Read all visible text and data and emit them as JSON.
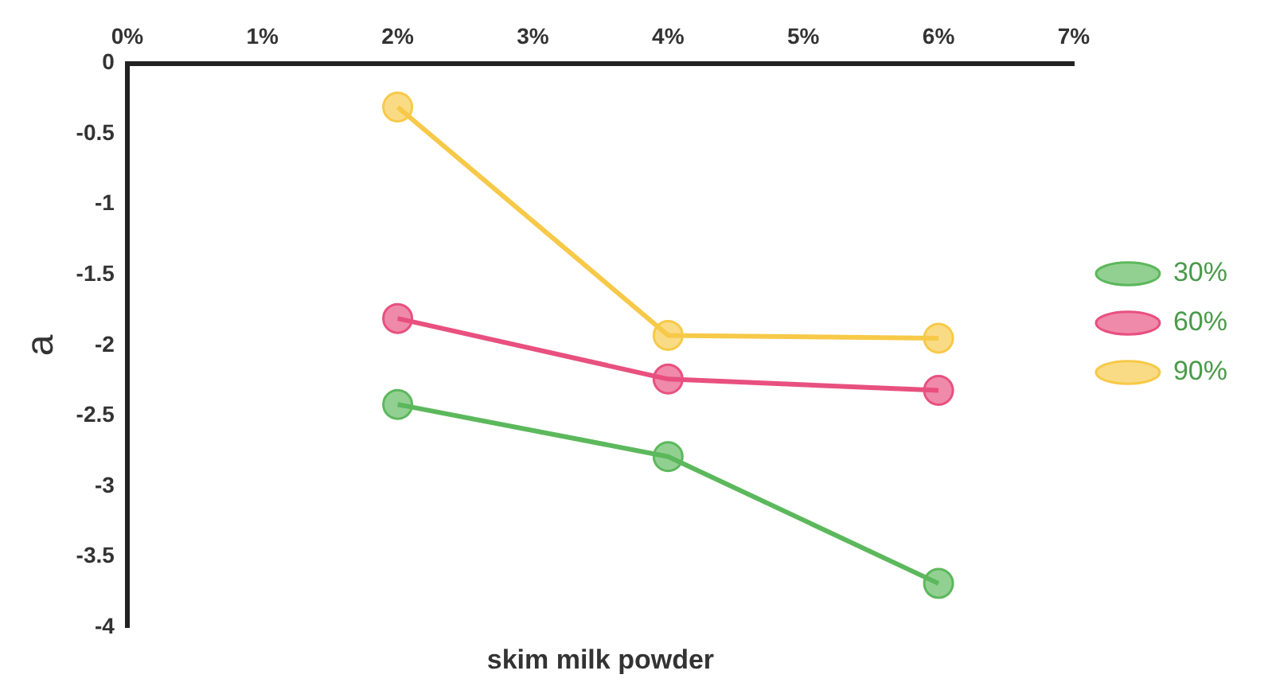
{
  "chart_data": {
    "type": "line",
    "xlabel": "skim milk powder",
    "ylabel": "a",
    "x": [
      2,
      4,
      6
    ],
    "series": [
      {
        "name": "30%",
        "color": "#5cb85c",
        "values": [
          -2.42,
          -2.79,
          -3.69
        ]
      },
      {
        "name": "60%",
        "color": "#e8507f",
        "values": [
          -1.81,
          -2.24,
          -2.32
        ]
      },
      {
        "name": "90%",
        "color": "#f7c948",
        "values": [
          -0.31,
          -1.93,
          -1.95
        ]
      }
    ],
    "xlim": [
      0,
      7
    ],
    "xticks": [
      {
        "value": 0,
        "label": "0%"
      },
      {
        "value": 1,
        "label": "1%"
      },
      {
        "value": 2,
        "label": "2%"
      },
      {
        "value": 3,
        "label": "3%"
      },
      {
        "value": 4,
        "label": "4%"
      },
      {
        "value": 5,
        "label": "5%"
      },
      {
        "value": 6,
        "label": "6%"
      },
      {
        "value": 7,
        "label": "7%"
      }
    ],
    "ylim": [
      -4,
      0
    ],
    "yticks": [
      0,
      -0.5,
      -1,
      -1.5,
      -2,
      -2.5,
      -3,
      -3.5,
      -4
    ],
    "marker": "circle",
    "line_style": "solid",
    "legend": "right",
    "grid": false
  }
}
